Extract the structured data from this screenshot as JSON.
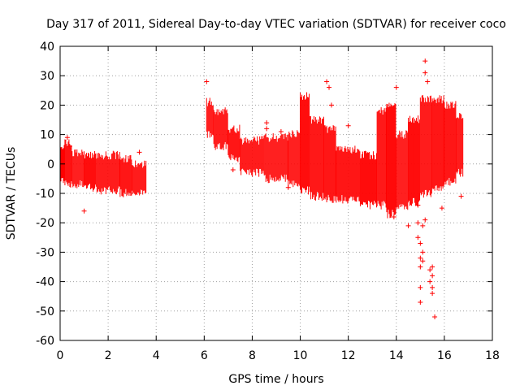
{
  "chart_data": {
    "type": "scatter",
    "title": "Day 317 of 2011, Sidereal Day-to-day VTEC variation (SDTVAR) for receiver coco",
    "xlabel": "GPS time / hours",
    "ylabel": "SDTVAR / TECUs",
    "xlim": [
      0,
      18
    ],
    "ylim": [
      -60,
      40
    ],
    "xticks": [
      "0",
      "2",
      "4",
      "6",
      "8",
      "10",
      "12",
      "14",
      "16",
      "18"
    ],
    "yticks": [
      "40",
      "30",
      "20",
      "10",
      "0",
      "-10",
      "-20",
      "-30",
      "-40",
      "-50",
      "-60"
    ],
    "grid": true,
    "marker": "+",
    "color": "#ff0000",
    "series": [
      {
        "name": "SDTVAR",
        "bands": [
          {
            "x": [
              0.0,
              0.2
            ],
            "lo": -6,
            "hi": 6
          },
          {
            "x": [
              0.2,
              0.5
            ],
            "lo": -7,
            "hi": 7
          },
          {
            "x": [
              0.5,
              1.0
            ],
            "lo": -7,
            "hi": 4
          },
          {
            "x": [
              1.0,
              1.5
            ],
            "lo": -8,
            "hi": 3
          },
          {
            "x": [
              1.5,
              2.5
            ],
            "lo": -9,
            "hi": 3
          },
          {
            "x": [
              2.5,
              3.0
            ],
            "lo": -10,
            "hi": 2
          },
          {
            "x": [
              3.0,
              3.6
            ],
            "lo": -10,
            "hi": 0
          },
          {
            "x": [
              6.1,
              6.4
            ],
            "lo": 10,
            "hi": 21
          },
          {
            "x": [
              6.4,
              7.0
            ],
            "lo": 6,
            "hi": 18
          },
          {
            "x": [
              7.0,
              7.5
            ],
            "lo": 2,
            "hi": 12
          },
          {
            "x": [
              7.5,
              8.5
            ],
            "lo": -3,
            "hi": 8
          },
          {
            "x": [
              8.5,
              9.5
            ],
            "lo": -5,
            "hi": 9
          },
          {
            "x": [
              9.5,
              10.0
            ],
            "lo": -7,
            "hi": 10
          },
          {
            "x": [
              10.0,
              10.4
            ],
            "lo": -9,
            "hi": 23
          },
          {
            "x": [
              10.4,
              11.0
            ],
            "lo": -11,
            "hi": 15
          },
          {
            "x": [
              11.0,
              11.5
            ],
            "lo": -12,
            "hi": 12
          },
          {
            "x": [
              11.5,
              12.5
            ],
            "lo": -12,
            "hi": 5
          },
          {
            "x": [
              12.5,
              13.2
            ],
            "lo": -14,
            "hi": 3
          },
          {
            "x": [
              13.2,
              13.6
            ],
            "lo": -14,
            "hi": 18
          },
          {
            "x": [
              13.6,
              14.0
            ],
            "lo": -17,
            "hi": 20
          },
          {
            "x": [
              14.0,
              14.5
            ],
            "lo": -15,
            "hi": 10
          },
          {
            "x": [
              14.5,
              15.0
            ],
            "lo": -13,
            "hi": 15
          },
          {
            "x": [
              15.0,
              15.5
            ],
            "lo": -10,
            "hi": 22
          },
          {
            "x": [
              15.5,
              16.0
            ],
            "lo": -8,
            "hi": 22
          },
          {
            "x": [
              16.0,
              16.5
            ],
            "lo": -6,
            "hi": 20
          },
          {
            "x": [
              16.5,
              16.8
            ],
            "lo": -3,
            "hi": 16
          }
        ],
        "outliers": [
          [
            1.0,
            -16
          ],
          [
            0.3,
            9
          ],
          [
            0.4,
            6
          ],
          [
            3.3,
            4
          ],
          [
            6.1,
            28
          ],
          [
            7.2,
            -2
          ],
          [
            8.6,
            14
          ],
          [
            8.6,
            12
          ],
          [
            9.2,
            11
          ],
          [
            9.5,
            -8
          ],
          [
            11.1,
            28
          ],
          [
            11.2,
            26
          ],
          [
            11.3,
            20
          ],
          [
            12.0,
            13
          ],
          [
            13.9,
            -18
          ],
          [
            14.0,
            26
          ],
          [
            14.5,
            -21
          ],
          [
            14.9,
            -20
          ],
          [
            14.9,
            -25
          ],
          [
            15.0,
            -27
          ],
          [
            15.0,
            -32
          ],
          [
            15.1,
            -33
          ],
          [
            15.1,
            -30
          ],
          [
            15.0,
            -35
          ],
          [
            15.0,
            -42
          ],
          [
            15.0,
            -47
          ],
          [
            15.1,
            -21
          ],
          [
            15.2,
            -19
          ],
          [
            15.2,
            35
          ],
          [
            15.2,
            31
          ],
          [
            15.3,
            28
          ],
          [
            15.4,
            -36
          ],
          [
            15.5,
            -38
          ],
          [
            15.4,
            -40
          ],
          [
            15.5,
            -42
          ],
          [
            15.5,
            -44
          ],
          [
            15.6,
            -52
          ],
          [
            15.5,
            -35
          ],
          [
            15.9,
            -15
          ],
          [
            16.7,
            -11
          ],
          [
            14.9,
            -14
          ]
        ]
      }
    ]
  }
}
